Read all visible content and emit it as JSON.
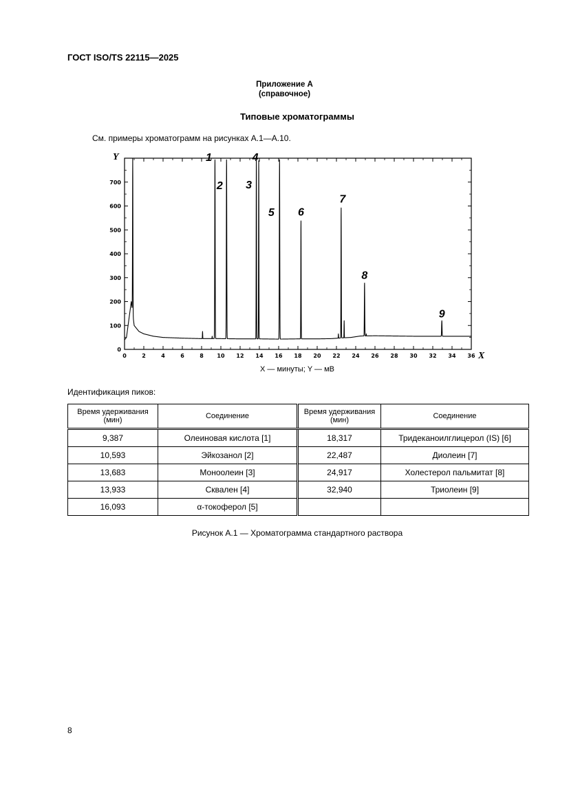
{
  "header": {
    "doc_code": "ГОСТ ISO/TS 22115—2025"
  },
  "annex": {
    "title": "Приложение А",
    "subtitle": "(справочное)"
  },
  "section_title": "Типовые хроматограммы",
  "intro_text": "См. примеры хроматограмм на рисунках А.1—А.10.",
  "chart_data": {
    "type": "line",
    "x_axis_label": "X",
    "y_axis_label": "Y",
    "xlim": [
      0,
      36
    ],
    "ylim": [
      0,
      800
    ],
    "x_ticks": [
      0,
      2,
      4,
      6,
      8,
      10,
      12,
      14,
      16,
      18,
      20,
      22,
      24,
      26,
      28,
      30,
      32,
      34,
      36
    ],
    "y_ticks": [
      0,
      100,
      200,
      300,
      400,
      500,
      600,
      700
    ],
    "grid": false,
    "baseline_points": [
      [
        0,
        40
      ],
      [
        0.2,
        50
      ],
      [
        0.7,
        200
      ],
      [
        1.0,
        100
      ],
      [
        1.5,
        75
      ],
      [
        2,
        65
      ],
      [
        3,
        55
      ],
      [
        4,
        50
      ],
      [
        6,
        47
      ],
      [
        8,
        45
      ],
      [
        10,
        45
      ],
      [
        12,
        44
      ],
      [
        14,
        44
      ],
      [
        16,
        43
      ],
      [
        18,
        44
      ],
      [
        20,
        44
      ],
      [
        21.5,
        45
      ],
      [
        22.5,
        48
      ],
      [
        23.5,
        50
      ],
      [
        24.5,
        56
      ],
      [
        26,
        57
      ],
      [
        28,
        56
      ],
      [
        30,
        55
      ],
      [
        32,
        55
      ],
      [
        34,
        55
      ],
      [
        36,
        55
      ]
    ],
    "peaks": [
      {
        "label": "1",
        "x": 9.387,
        "height": 800,
        "width": 0.09
      },
      {
        "label": "2",
        "x": 10.593,
        "height": 800,
        "width": 0.09
      },
      {
        "label": "3",
        "x": 13.683,
        "height": 800,
        "width": 0.07
      },
      {
        "label": "4",
        "x": 13.933,
        "height": 800,
        "width": 0.07
      },
      {
        "label": "5",
        "x": 16.093,
        "height": 800,
        "width": 0.09
      },
      {
        "label": "6",
        "x": 18.317,
        "height": 545,
        "width": 0.07
      },
      {
        "label": "7",
        "x": 22.487,
        "height": 600,
        "width": 0.07
      },
      {
        "label": "8",
        "x": 24.917,
        "height": 280,
        "width": 0.08
      },
      {
        "label": "9",
        "x": 32.94,
        "height": 120,
        "width": 0.09
      }
    ],
    "minor_peaks": [
      {
        "x": 0.85,
        "height": 800,
        "width": 0.08
      },
      {
        "x": 8.1,
        "height": 75,
        "width": 0.06
      },
      {
        "x": 9.1,
        "height": 55,
        "width": 0.05
      },
      {
        "x": 22.2,
        "height": 65,
        "width": 0.05
      },
      {
        "x": 22.8,
        "height": 120,
        "width": 0.05
      },
      {
        "x": 25.1,
        "height": 65,
        "width": 0.05
      }
    ]
  },
  "x_caption": "X — минуты; Y — мВ",
  "peaks_label": "Идентификация пиков:",
  "table": {
    "headers": [
      "Время удерживания (мин)",
      "Соединение",
      "Время удерживания (мин)",
      "Соединение"
    ],
    "rows": [
      [
        "9,387",
        "Олеиновая кислота [1]",
        "18,317",
        "Тридеканоилглицерол (IS) [6]"
      ],
      [
        "10,593",
        "Эйкозанол [2]",
        "22,487",
        "Диолеин [7]"
      ],
      [
        "13,683",
        "Моноолеин [3]",
        "24,917",
        "Холестерол пальмитат [8]"
      ],
      [
        "13,933",
        "Сквален [4]",
        "32,940",
        "Триолеин [9]"
      ],
      [
        "16,093",
        "α-токоферол [5]",
        "",
        ""
      ]
    ]
  },
  "figure_caption": "Рисунок А.1 — Хроматограмма стандартного раствора",
  "page_number": "8"
}
